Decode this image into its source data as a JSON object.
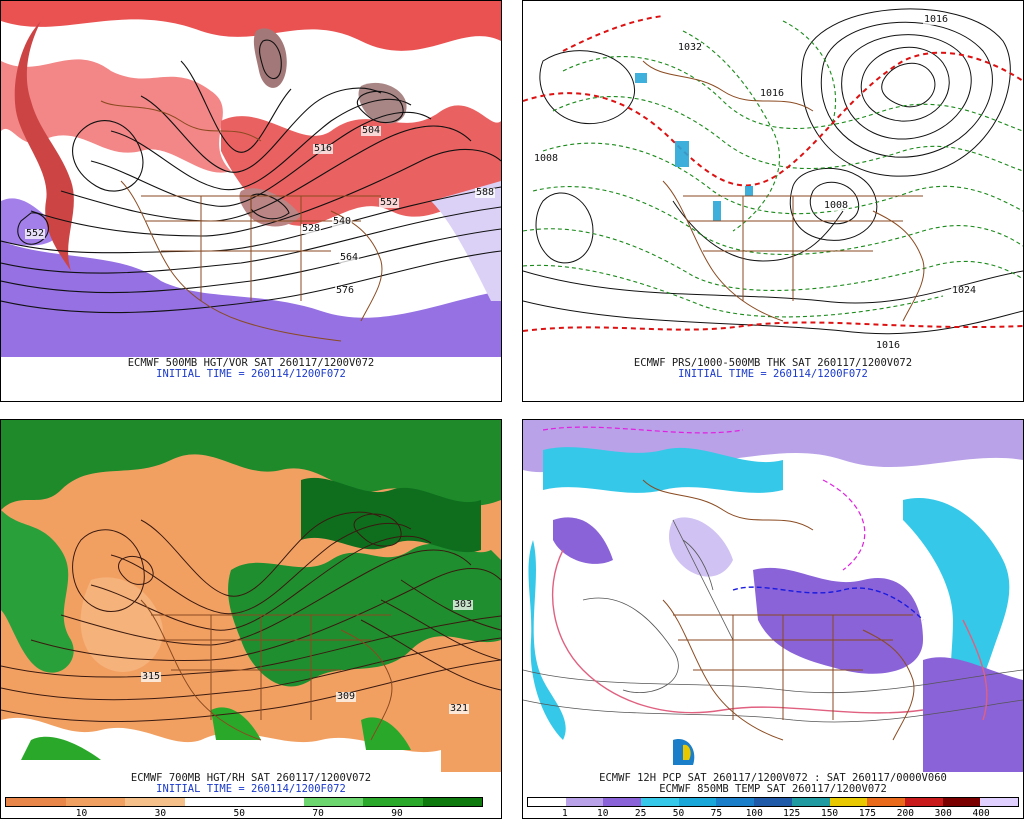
{
  "panels": {
    "p1": {
      "title": "ECMWF 500MB HGT/VOR SAT 260117/1200V072",
      "init": "INITIAL TIME = 260114/1200F072",
      "labels": [
        "516",
        "504",
        "552",
        "540",
        "528",
        "564",
        "576",
        "588",
        "552"
      ]
    },
    "p2": {
      "title": "ECMWF PRS/1000-500MB THK SAT 260117/1200V072",
      "init": "INITIAL TIME = 260114/1200F072",
      "labels": [
        "1032",
        "1016",
        "1008",
        "1008",
        "1024",
        "1016",
        "1016"
      ]
    },
    "p3": {
      "title": "ECMWF 700MB HGT/RH SAT 260117/1200V072",
      "init": "INITIAL TIME = 260114/1200F072",
      "labels": [
        "315",
        "309",
        "321",
        "303"
      ]
    },
    "p4": {
      "title": "ECMWF 12H PCP SAT 260117/1200V072 : SAT 260117/0000V060",
      "init": "ECMWF 850MB TEMP SAT 260117/1200V072"
    }
  },
  "rh_colorbar": {
    "ticks": [
      "10",
      "30",
      "50",
      "70",
      "90"
    ],
    "colors": [
      "#e8864a",
      "#f0a060",
      "#f6c08a",
      "#ffffff",
      "#ffffff",
      "#6ed66e",
      "#2aa82a",
      "#0e7a0e"
    ]
  },
  "pcp_colorbar": {
    "ticks": [
      "1",
      "10",
      "25",
      "50",
      "75",
      "100",
      "125",
      "150",
      "175",
      "200",
      "300",
      "400"
    ],
    "colors": [
      "#ffffff",
      "#b9a2e8",
      "#8a63d8",
      "#35c8e8",
      "#19a6d8",
      "#1a7ec8",
      "#1f5aa8",
      "#1e9aa0",
      "#e8c800",
      "#e86a1a",
      "#c81a1a",
      "#7a0000",
      "#e0d0ff"
    ]
  }
}
